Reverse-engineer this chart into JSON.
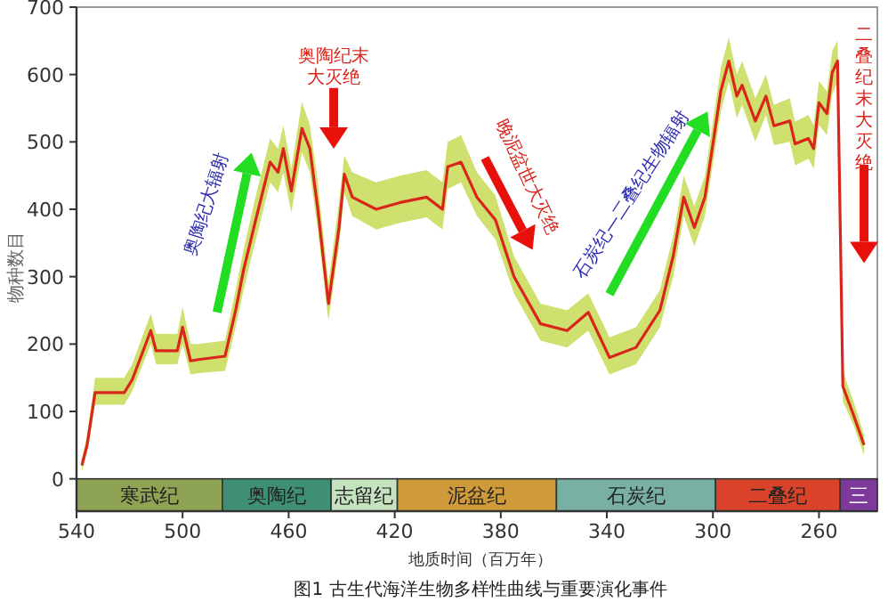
{
  "chart_data": {
    "type": "line",
    "xlabel": "地质时间（百万年）",
    "ylabel": "物种数目",
    "xlim": [
      540,
      238
    ],
    "xticks": [
      540,
      500,
      460,
      420,
      380,
      340,
      300,
      260
    ],
    "ylim": [
      -48,
      700
    ],
    "yticks": [
      0,
      100,
      200,
      300,
      400,
      500,
      600,
      700
    ],
    "series": [
      {
        "color": "#d9261c",
        "x": [
          538,
          536,
          533,
          522,
          519,
          512,
          510,
          502,
          500,
          497,
          494,
          484,
          480,
          477,
          473,
          467,
          464,
          462,
          459,
          455,
          452,
          449,
          445,
          441,
          439,
          436,
          427,
          418,
          408,
          402,
          400,
          395,
          389,
          382,
          375,
          365,
          355,
          347,
          339,
          329,
          320,
          315,
          311,
          307,
          303,
          297,
          294,
          291,
          289,
          284,
          280,
          277,
          271,
          269,
          264,
          262,
          260,
          257,
          255,
          253,
          251,
          247,
          243
        ],
        "values": [
          20,
          50,
          128,
          128,
          147,
          220,
          190,
          190,
          225,
          175,
          177,
          182,
          250,
          310,
          375,
          470,
          455,
          490,
          427,
          520,
          490,
          400,
          260,
          373,
          452,
          418,
          400,
          410,
          418,
          400,
          463,
          470,
          418,
          384,
          300,
          230,
          220,
          247,
          180,
          195,
          250,
          330,
          418,
          373,
          418,
          576,
          620,
          568,
          584,
          531,
          568,
          524,
          531,
          497,
          505,
          490,
          558,
          542,
          603,
          620,
          137,
          95,
          50
        ],
        "lower": [
          10,
          40,
          110,
          110,
          130,
          200,
          170,
          170,
          200,
          155,
          157,
          160,
          225,
          280,
          345,
          440,
          425,
          455,
          395,
          485,
          455,
          370,
          235,
          345,
          425,
          390,
          370,
          380,
          388,
          370,
          430,
          440,
          390,
          355,
          275,
          205,
          195,
          220,
          155,
          170,
          225,
          300,
          390,
          345,
          390,
          545,
          590,
          535,
          555,
          500,
          540,
          495,
          500,
          465,
          475,
          460,
          525,
          510,
          570,
          590,
          115,
          80,
          35
        ],
        "upper": [
          30,
          65,
          150,
          150,
          170,
          245,
          215,
          215,
          255,
          200,
          200,
          205,
          280,
          340,
          410,
          505,
          490,
          525,
          460,
          560,
          525,
          440,
          290,
          410,
          480,
          455,
          440,
          450,
          458,
          440,
          500,
          510,
          455,
          420,
          330,
          260,
          250,
          275,
          210,
          225,
          280,
          360,
          450,
          405,
          450,
          610,
          655,
          600,
          620,
          565,
          600,
          555,
          565,
          530,
          540,
          525,
          590,
          575,
          635,
          650,
          160,
          115,
          65
        ]
      }
    ],
    "bands": [
      {
        "axis": "x",
        "from": 540,
        "to": 485,
        "label": "寒武纪",
        "color": "#8fa354"
      },
      {
        "axis": "x",
        "from": 485,
        "to": 444,
        "label": "奥陶纪",
        "color": "#3f8f72"
      },
      {
        "axis": "x",
        "from": 444,
        "to": 419,
        "label": "志留纪",
        "color": "#c6e3c0"
      },
      {
        "axis": "x",
        "from": 419,
        "to": 359,
        "label": "泥盆纪",
        "color": "#cf9a3a"
      },
      {
        "axis": "x",
        "from": 359,
        "to": 299,
        "label": "石炭纪",
        "color": "#78b0a4"
      },
      {
        "axis": "x",
        "from": 299,
        "to": 252,
        "label": "二叠纪",
        "color": "#d8432a"
      },
      {
        "axis": "x",
        "from": 252,
        "to": 238,
        "label": "三",
        "color": "#7d3a9b"
      }
    ],
    "annotations": [
      "奥陶纪大辐射",
      "奥陶纪末大灭绝",
      "晚泥盆世大灭绝",
      "石炭纪—二叠纪生物辐射",
      "二叠纪末大灭绝",
      "图1  古生代海洋生物多样性曲线与重要演化事件"
    ]
  }
}
